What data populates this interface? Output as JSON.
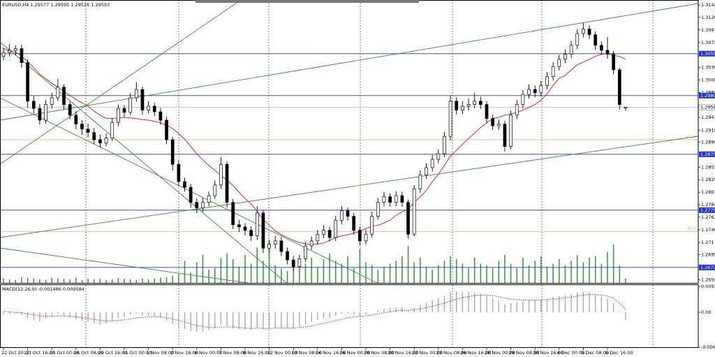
{
  "chart_data": {
    "type": "candlestick",
    "title": "EURUSD,H4  1.29577 1.29595 1.29526 1.29593",
    "color": "#000000",
    "categories": [
      "22 Oct 2012",
      null,
      null,
      null,
      "23 Oct 16:00",
      null,
      null,
      null,
      "25 Oct 00:00",
      null,
      null,
      null,
      "26 Oct 08:00",
      null,
      null,
      null,
      "29 Oct 16:00",
      null,
      null,
      null,
      "31 Oct 00:00",
      null,
      null,
      null,
      "1 Nov 08:00",
      null,
      null,
      null,
      "2 Nov 16:00",
      null,
      null,
      null,
      "6 Nov 00:00",
      null,
      null,
      null,
      "7 Nov 08:00",
      null,
      null,
      null,
      "8 Nov 16:00",
      null,
      null,
      null,
      "12 Nov 00:00",
      null,
      null,
      null,
      "13 Nov 08:00",
      null,
      null,
      null,
      "14 Nov 16:00",
      null,
      null,
      null,
      "16 Nov 00:00",
      null,
      null,
      null,
      "19 Nov 08:00",
      null,
      null,
      null,
      "20 Nov 16:00",
      null,
      null,
      null,
      "22 Nov 00:00",
      null,
      null,
      null,
      "23 Nov 08:00",
      null,
      null,
      null,
      "26 Nov 16:00",
      null,
      null,
      null,
      "28 Nov 00:00",
      null,
      null,
      null,
      "29 Nov 08:00",
      null,
      null,
      null,
      "30 Nov 16:00",
      null,
      null,
      null,
      "4 Dec 00:00",
      null,
      null,
      null,
      "5 Dec 08:00",
      null,
      null,
      null,
      "6 Dec 16:00",
      null,
      null,
      null
    ],
    "open": [
      1.305,
      1.3057,
      1.3061,
      1.3064,
      1.3039,
      1.297,
      1.2957,
      1.2936,
      1.2964,
      1.2976,
      1.2995,
      1.2964,
      1.2945,
      1.2929,
      1.292,
      1.2914,
      1.2901,
      1.2895,
      1.2904,
      1.2932,
      1.2957,
      1.295,
      1.2976,
      1.2991,
      1.2954,
      1.2961,
      1.2951,
      1.2936,
      1.2901,
      1.2857,
      1.2826,
      1.2816,
      1.2789,
      1.2779,
      1.2789,
      1.2801,
      1.282,
      1.2857,
      1.2789,
      1.2749,
      1.2745,
      1.2739,
      1.2729,
      1.277,
      1.2707,
      1.2714,
      1.272,
      1.2701,
      1.2686,
      1.2674,
      1.2688,
      1.2711,
      1.272,
      1.2732,
      1.2739,
      1.2726,
      1.2757,
      1.2774,
      1.2764,
      1.2739,
      1.272,
      1.2732,
      1.2764,
      1.2789,
      1.2799,
      1.2789,
      1.2801,
      1.2789,
      1.2732,
      1.2813,
      1.2838,
      1.2851,
      1.2866,
      1.2876,
      1.2907,
      1.297,
      1.2954,
      1.2961,
      1.2964,
      1.297,
      1.2964,
      1.2939,
      1.2926,
      1.2929,
      1.2889,
      1.2945,
      1.2964,
      1.2982,
      1.2991,
      1.2985,
      1.2998,
      1.3014,
      1.3032,
      1.3045,
      1.3054,
      1.307,
      1.3091,
      1.3099,
      1.3089,
      1.307,
      1.3061,
      1.3054,
      1.3026,
      1.29577
    ],
    "high": [
      1.3066,
      1.3072,
      1.307,
      1.3071,
      1.3045,
      1.298,
      1.2965,
      1.2972,
      1.2985,
      1.301,
      1.3,
      1.297,
      1.2952,
      1.2936,
      1.293,
      1.2922,
      1.291,
      1.2912,
      1.294,
      1.2964,
      1.2963,
      1.2984,
      1.3004,
      1.2996,
      1.297,
      1.2967,
      1.2958,
      1.2942,
      1.2906,
      1.2864,
      1.2833,
      1.2822,
      1.2796,
      1.2797,
      1.2808,
      1.2828,
      1.287,
      1.2862,
      1.2795,
      1.2758,
      1.2752,
      1.2746,
      1.2782,
      1.2775,
      1.2722,
      1.2729,
      1.2727,
      1.2708,
      1.2693,
      1.2695,
      1.2718,
      1.2728,
      1.274,
      1.2748,
      1.2745,
      1.2765,
      1.2782,
      1.278,
      1.277,
      1.2745,
      1.274,
      1.2772,
      1.2797,
      1.2808,
      1.2805,
      1.2809,
      1.2808,
      1.2794,
      1.282,
      1.2846,
      1.2859,
      1.2874,
      1.2884,
      1.2915,
      1.298,
      1.2977,
      1.297,
      1.2975,
      1.2985,
      1.2978,
      1.297,
      1.2946,
      1.2937,
      1.2935,
      1.2953,
      1.2972,
      1.299,
      1.3,
      1.2998,
      1.3006,
      1.3022,
      1.304,
      1.3053,
      1.3062,
      1.3078,
      1.3099,
      1.311,
      1.3106,
      1.3095,
      1.3077,
      1.3085,
      1.306,
      1.303,
      1.29595
    ],
    "low": [
      1.3043,
      1.305,
      1.3052,
      1.303,
      1.2958,
      1.2948,
      1.2928,
      1.293,
      1.2957,
      1.297,
      1.2955,
      1.2938,
      1.292,
      1.291,
      1.2905,
      1.2893,
      1.2887,
      1.2889,
      1.2899,
      1.2925,
      1.2942,
      1.2945,
      1.2969,
      1.2946,
      1.2948,
      1.2943,
      1.2928,
      1.2893,
      1.2846,
      1.2818,
      1.2808,
      1.2779,
      1.277,
      1.2772,
      1.2782,
      1.2795,
      1.2813,
      1.278,
      1.2741,
      1.2736,
      1.273,
      1.272,
      1.2722,
      1.2698,
      1.27,
      1.2706,
      1.2693,
      1.2678,
      1.2667,
      1.2668,
      1.2682,
      1.2704,
      1.2713,
      1.2725,
      1.2719,
      1.272,
      1.275,
      1.2756,
      1.2731,
      1.2712,
      1.2714,
      1.2726,
      1.2758,
      1.2782,
      1.2781,
      1.2782,
      1.2781,
      1.2724,
      1.2728,
      1.2806,
      1.2831,
      1.2844,
      1.2859,
      1.287,
      1.29,
      1.2946,
      1.2947,
      1.2953,
      1.2957,
      1.2956,
      1.2931,
      1.2918,
      1.2919,
      1.288,
      1.2884,
      1.2938,
      1.2957,
      1.2975,
      1.2977,
      1.2978,
      1.2991,
      1.3007,
      1.3025,
      1.3038,
      1.3047,
      1.3063,
      1.3084,
      1.3081,
      1.3062,
      1.3053,
      1.3046,
      1.3018,
      1.2955,
      1.29526
    ],
    "close": [
      1.3057,
      1.3061,
      1.3064,
      1.3039,
      1.297,
      1.2957,
      1.2936,
      1.2964,
      1.2976,
      1.2995,
      1.2964,
      1.2945,
      1.2929,
      1.292,
      1.2914,
      1.2901,
      1.2895,
      1.2904,
      1.2932,
      1.2957,
      1.295,
      1.2976,
      1.2991,
      1.2954,
      1.2961,
      1.2951,
      1.2936,
      1.2901,
      1.2857,
      1.2826,
      1.2816,
      1.2789,
      1.2779,
      1.2789,
      1.2801,
      1.282,
      1.2857,
      1.2789,
      1.2749,
      1.2745,
      1.2739,
      1.2729,
      1.277,
      1.2707,
      1.2714,
      1.272,
      1.2701,
      1.2686,
      1.2674,
      1.2688,
      1.2711,
      1.272,
      1.2732,
      1.2739,
      1.2726,
      1.2757,
      1.2774,
      1.2764,
      1.2739,
      1.272,
      1.2732,
      1.2764,
      1.2789,
      1.2799,
      1.2789,
      1.2801,
      1.2789,
      1.2732,
      1.2813,
      1.2838,
      1.2851,
      1.2866,
      1.2876,
      1.2907,
      1.297,
      1.2954,
      1.2961,
      1.2964,
      1.297,
      1.2964,
      1.2939,
      1.2926,
      1.2929,
      1.2889,
      1.2945,
      1.2964,
      1.2982,
      1.2991,
      1.2985,
      1.2998,
      1.3014,
      1.3032,
      1.3045,
      1.3054,
      1.307,
      1.3091,
      1.3099,
      1.3089,
      1.307,
      1.3061,
      1.3054,
      1.3026,
      1.2964,
      1.29593
    ],
    "ylim": [
      1.26448,
      1.3151
    ],
    "yticks": [
      {
        "value": 1.3142,
        "label": "1.31420"
      },
      {
        "value": 1.312,
        "label": "1.31200"
      },
      1.30975,
      {
        "value": 1.3075,
        "label": "1.30750"
      },
      1.30305,
      {
        "value": 1.3008,
        "label": "1.30080"
      },
      1.29855,
      {
        "value": 1.2941,
        "label": "1.29410"
      },
      {
        "value": 1.2918,
        "label": "1.29180"
      },
      1.28965,
      1.28515,
      1.28295,
      {
        "value": 1.2807,
        "label": "1.28070"
      },
      1.27845,
      1.27625,
      {
        "value": 1.274,
        "label": "1.27400"
      },
      {
        "value": 1.2717,
        "label": "1.27170"
      },
      1.26955,
      1.26505
    ],
    "moving_average": {
      "color": "#e0262a",
      "values": [
        1.3064,
        1.3061,
        1.3058,
        1.3051,
        1.3041,
        1.303,
        1.3018,
        1.301,
        1.3002,
        1.2995,
        1.2987,
        1.298,
        1.2973,
        1.2967,
        1.2961,
        1.2952,
        1.2945,
        1.2939,
        1.2939,
        1.294,
        1.2941,
        1.294,
        1.2939,
        1.2937,
        1.2936,
        1.2934,
        1.2931,
        1.2927,
        1.2921,
        1.2912,
        1.2902,
        1.2889,
        1.2876,
        1.2865,
        1.2855,
        1.2846,
        1.2837,
        1.2829,
        1.2819,
        1.2807,
        1.2796,
        1.2786,
        1.2773,
        1.2758,
        1.2748,
        1.2738,
        1.2731,
        1.2726,
        1.2721,
        1.2717,
        1.2715,
        1.2713,
        1.2715,
        1.2716,
        1.2721,
        1.2726,
        1.2729,
        1.2731,
        1.2734,
        1.2737,
        1.2742,
        1.2746,
        1.2748,
        1.2752,
        1.2757,
        1.2766,
        1.2772,
        1.2777,
        1.2789,
        1.2799,
        1.281,
        1.2826,
        1.2839,
        1.2855,
        1.2872,
        1.2882,
        1.2893,
        1.2903,
        1.2913,
        1.2923,
        1.2931,
        1.2939,
        1.2941,
        1.2945,
        1.2947,
        1.295,
        1.2954,
        1.2959,
        1.2964,
        1.2972,
        1.2983,
        1.2998,
        1.3011,
        1.3016,
        1.3026,
        1.3035,
        1.304,
        1.3045,
        1.305,
        1.3054,
        1.3055,
        1.3052,
        1.305,
        1.3045
      ]
    },
    "volume": {
      "color": "#2f9a2f",
      "values": [
        300,
        250,
        200,
        400,
        350,
        300,
        250,
        200,
        350,
        300,
        300,
        250,
        350,
        200,
        300,
        250,
        300,
        200,
        250,
        350,
        300,
        250,
        200,
        300,
        250,
        300,
        350,
        400,
        500,
        600,
        1500,
        700,
        1400,
        1900,
        900,
        1000,
        1700,
        2000,
        1600,
        1100,
        1900,
        1300,
        2400,
        1500,
        2200,
        1200,
        1000,
        800,
        1400,
        900,
        1300,
        1700,
        1100,
        1600,
        2000,
        1500,
        1300,
        1800,
        1000,
        2300,
        1400,
        1200,
        900,
        1100,
        1300,
        1500,
        1800,
        2500,
        1400,
        1700,
        1100,
        900,
        1200,
        1500,
        1800,
        1600,
        1300,
        1000,
        1700,
        1300,
        1200,
        1000,
        1500,
        1900,
        1300,
        1000,
        1700,
        1200,
        1500,
        1800,
        1100,
        1300,
        1600,
        1200,
        1500,
        1900,
        1400,
        1700,
        1800,
        1300,
        2100,
        2600,
        1200,
        300
      ]
    },
    "levels": {
      "color": "#2030d8",
      "values": [
        {
          "value": 1.3055,
          "label": "1.30550"
        },
        {
          "value": 1.298,
          "label": "1.29800"
        },
        {
          "value": 1.2875,
          "label": "1.28750"
        },
        {
          "value": 1.2775,
          "label": "1.27750"
        },
        1.26725
      ]
    },
    "current_price": {
      "color": "#b8b8b8",
      "value": 1.29593
    },
    "fib_levels": {
      "color": "#e8a070",
      "values": [
        {
          "value": 1.2901,
          "label": "61.8"
        },
        {
          "value": 1.2737,
          "label": "38.2"
        }
      ]
    },
    "macd": {
      "title": "MACD(12,26,9) -0.001486 0.000584",
      "ylim": [
        -0.006891,
        0.00511
      ],
      "yticks": [
        {
          "value": 0.00511,
          "label": "0.005110"
        },
        {
          "value": 0,
          "label": "0.00"
        },
        -0.006891
      ],
      "histogram": {
        "color": "#a8a8a8",
        "values": [
          -0.0004,
          -0.0003,
          -0.0002,
          -0.0005,
          -0.0012,
          -0.0015,
          -0.0018,
          -0.0012,
          -0.0008,
          -0.0003,
          -0.0006,
          -0.001,
          -0.0014,
          -0.0017,
          -0.0019,
          -0.0022,
          -0.0024,
          -0.0022,
          -0.0017,
          -0.0011,
          -0.0009,
          -0.0005,
          -0.0002,
          -0.0006,
          -0.0006,
          -0.0008,
          -0.0011,
          -0.0016,
          -0.0023,
          -0.0029,
          -0.0033,
          -0.0037,
          -0.0039,
          -0.0038,
          -0.0035,
          -0.0031,
          -0.0024,
          -0.0027,
          -0.0031,
          -0.0033,
          -0.0034,
          -0.0035,
          -0.003,
          -0.0033,
          -0.0032,
          -0.003,
          -0.003,
          -0.0031,
          -0.0031,
          -0.0028,
          -0.0023,
          -0.0019,
          -0.0015,
          -0.0012,
          -0.0011,
          -0.0007,
          -0.0003,
          -0.0002,
          -0.0004,
          -0.0006,
          -0.0004,
          0.0,
          0.0004,
          0.0007,
          0.0008,
          0.001,
          0.001,
          0.0003,
          0.0009,
          0.0014,
          0.0019,
          0.0024,
          0.0028,
          0.0033,
          0.004,
          0.0041,
          0.0041,
          0.004,
          0.0039,
          0.0037,
          0.0032,
          0.0027,
          0.0023,
          0.0016,
          0.0018,
          0.002,
          0.0022,
          0.0024,
          0.0024,
          0.0025,
          0.0027,
          0.003,
          0.0032,
          0.0034,
          0.0036,
          0.0039,
          0.004,
          0.0039,
          0.0035,
          0.0031,
          0.0027,
          0.0018,
          0.0001,
          -0.001486
        ]
      },
      "signal": {
        "color": "#e0262a",
        "values": [
          0.0002,
          0.0001,
          0.0,
          -0.0001,
          -0.0003,
          -0.0005,
          -0.0007,
          -0.0008,
          -0.0008,
          -0.0007,
          -0.0007,
          -0.0008,
          -0.0009,
          -0.0011,
          -0.0012,
          -0.0014,
          -0.0016,
          -0.0017,
          -0.0017,
          -0.0016,
          -0.0015,
          -0.0013,
          -0.0011,
          -0.001,
          -0.0009,
          -0.0009,
          -0.0009,
          -0.0011,
          -0.0013,
          -0.0016,
          -0.0019,
          -0.0023,
          -0.0026,
          -0.0028,
          -0.003,
          -0.003,
          -0.0029,
          -0.0029,
          -0.0029,
          -0.003,
          -0.0031,
          -0.0032,
          -0.0031,
          -0.0032,
          -0.0032,
          -0.0031,
          -0.0031,
          -0.0031,
          -0.0031,
          -0.003,
          -0.0029,
          -0.0027,
          -0.0024,
          -0.0022,
          -0.0019,
          -0.0016,
          -0.0014,
          -0.0011,
          -0.0009,
          -0.0008,
          -0.0007,
          -0.0005,
          -0.0003,
          -0.0001,
          0.0001,
          0.0003,
          0.0004,
          0.0004,
          0.0005,
          0.0007,
          0.0009,
          0.0012,
          0.0015,
          0.0018,
          0.0022,
          0.0026,
          0.0029,
          0.0031,
          0.0033,
          0.0034,
          0.0034,
          0.0033,
          0.0031,
          0.0028,
          0.0026,
          0.0025,
          0.0024,
          0.0024,
          0.0024,
          0.0024,
          0.0025,
          0.0026,
          0.0027,
          0.0029,
          0.003,
          0.0032,
          0.0034,
          0.0035,
          0.0035,
          0.0034,
          0.0032,
          0.0028,
          0.0018,
          0.000584
        ]
      }
    }
  }
}
